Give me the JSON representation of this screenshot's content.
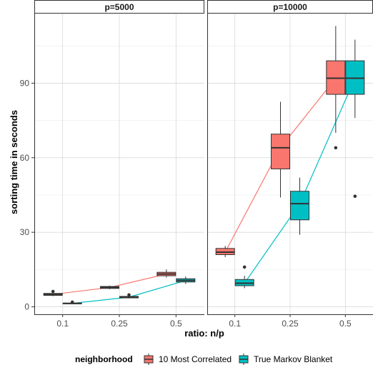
{
  "chart_data": {
    "type": "boxplot",
    "xlabel": "ratio: n/p",
    "ylabel": "sorting time in seconds",
    "categories": [
      "0.1",
      "0.25",
      "0.5"
    ],
    "y_ticks": [
      0,
      30,
      60,
      90
    ],
    "ylim": [
      -3,
      118
    ],
    "grid": true,
    "legend": {
      "title": "neighborhood",
      "position": "bottom",
      "entries": [
        {
          "name": "10 Most Correlated",
          "color": "#F8766D"
        },
        {
          "name": "True Markov Blanket",
          "color": "#00BFC4"
        }
      ]
    },
    "panels": [
      {
        "label": "p=5000",
        "series": [
          {
            "name": "10 Most Correlated",
            "color": "#F8766D",
            "boxes": [
              {
                "category": "0.1",
                "min": 4.3,
                "q1": 4.6,
                "median": 5.0,
                "q3": 5.4,
                "max": 5.7,
                "outliers": [
                  6.2
                ]
              },
              {
                "category": "0.25",
                "min": 7.1,
                "q1": 7.4,
                "median": 7.8,
                "q3": 8.2,
                "max": 8.5,
                "outliers": []
              },
              {
                "category": "0.5",
                "min": 11.8,
                "q1": 12.5,
                "median": 13.2,
                "q3": 13.9,
                "max": 15.0,
                "outliers": []
              }
            ]
          },
          {
            "name": "True Markov Blanket",
            "color": "#00BFC4",
            "boxes": [
              {
                "category": "0.1",
                "min": 1.2,
                "q1": 1.3,
                "median": 1.4,
                "q3": 1.5,
                "max": 1.6,
                "outliers": [
                  1.9
                ]
              },
              {
                "category": "0.25",
                "min": 3.4,
                "q1": 3.6,
                "median": 3.9,
                "q3": 4.2,
                "max": 4.5,
                "outliers": [
                  4.8
                ]
              },
              {
                "category": "0.5",
                "min": 9.2,
                "q1": 10.0,
                "median": 10.6,
                "q3": 11.3,
                "max": 12.2,
                "outliers": []
              }
            ]
          }
        ]
      },
      {
        "label": "p=10000",
        "series": [
          {
            "name": "10 Most Correlated",
            "color": "#F8766D",
            "boxes": [
              {
                "category": "0.1",
                "min": 20.0,
                "q1": 21.0,
                "median": 22.0,
                "q3": 23.5,
                "max": 24.5,
                "outliers": []
              },
              {
                "category": "0.25",
                "min": 44.0,
                "q1": 55.5,
                "median": 64.0,
                "q3": 69.5,
                "max": 82.5,
                "outliers": []
              },
              {
                "category": "0.5",
                "min": 70.0,
                "q1": 85.5,
                "median": 92.0,
                "q3": 99.0,
                "max": 113.0,
                "outliers": [
                  64.0
                ]
              }
            ]
          },
          {
            "name": "True Markov Blanket",
            "color": "#00BFC4",
            "boxes": [
              {
                "category": "0.1",
                "min": 7.5,
                "q1": 8.5,
                "median": 9.5,
                "q3": 11.0,
                "max": 12.5,
                "outliers": [
                  16.0
                ]
              },
              {
                "category": "0.25",
                "min": 29.0,
                "q1": 35.0,
                "median": 41.5,
                "q3": 46.5,
                "max": 52.0,
                "outliers": []
              },
              {
                "category": "0.5",
                "min": 76.0,
                "q1": 85.5,
                "median": 92.0,
                "q3": 99.0,
                "max": 107.5,
                "outliers": [
                  44.5
                ]
              }
            ]
          }
        ]
      }
    ]
  }
}
